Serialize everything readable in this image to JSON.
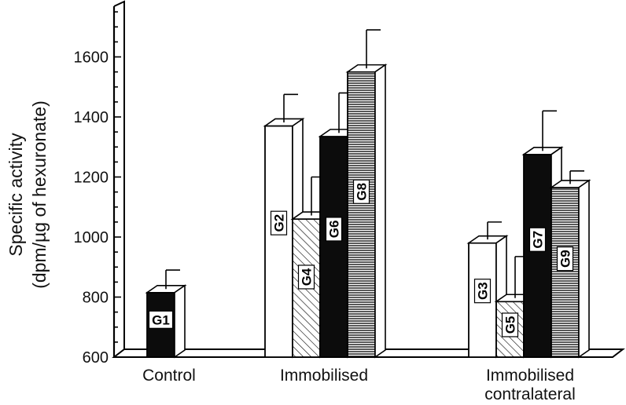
{
  "chart_data": {
    "type": "bar",
    "ylabel_line1": "Specific activity",
    "ylabel_line2": "(dpm/µg of hexuronate)",
    "xlabel": "",
    "ylim": [
      600,
      1750
    ],
    "yticks": [
      600,
      800,
      1000,
      1200,
      1400,
      1600
    ],
    "categories": [
      {
        "label_lines": [
          "Control"
        ]
      },
      {
        "label_lines": [
          "Immobilised"
        ]
      },
      {
        "label_lines": [
          "Immobilised",
          "contralateral"
        ]
      }
    ],
    "bars": [
      {
        "label": "G1",
        "group": 0,
        "value": 815,
        "error": 75,
        "pattern": "solid-dark"
      },
      {
        "label": "G2",
        "group": 1,
        "value": 1370,
        "error": 105,
        "pattern": "white"
      },
      {
        "label": "G4",
        "group": 1,
        "value": 1060,
        "error": 140,
        "pattern": "diagonal"
      },
      {
        "label": "G6",
        "group": 1,
        "value": 1335,
        "error": 145,
        "pattern": "solid-dark"
      },
      {
        "label": "G8",
        "group": 1,
        "value": 1550,
        "error": 140,
        "pattern": "horizontal"
      },
      {
        "label": "G3",
        "group": 2,
        "value": 980,
        "error": 70,
        "pattern": "white"
      },
      {
        "label": "G5",
        "group": 2,
        "value": 785,
        "error": 150,
        "pattern": "diagonal"
      },
      {
        "label": "G7",
        "group": 2,
        "value": 1275,
        "error": 145,
        "pattern": "solid-dark"
      },
      {
        "label": "G9",
        "group": 2,
        "value": 1165,
        "error": 55,
        "pattern": "horizontal"
      }
    ],
    "grid": false,
    "legend": "none"
  }
}
